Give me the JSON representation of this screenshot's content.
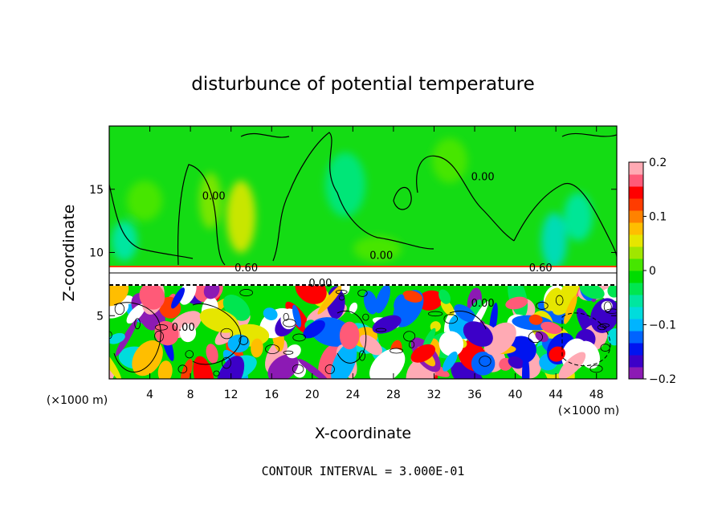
{
  "chart_data": {
    "type": "heatmap",
    "title": "disturbunce of potential temperature",
    "xlabel": "X-coordinate",
    "ylabel": "Z-coordinate",
    "x_unit_left": "(×1000 m)",
    "x_unit_right": "(×1000 m)",
    "xlim": [
      0,
      50
    ],
    "ylim": [
      0,
      20
    ],
    "x_ticks": [
      4,
      8,
      12,
      16,
      20,
      24,
      28,
      32,
      36,
      40,
      44,
      48
    ],
    "y_ticks": [
      5,
      10,
      15
    ],
    "colorbar": {
      "range": [
        -0.2,
        0.2
      ],
      "ticks": [
        {
          "value": 0.2,
          "label": "0.2"
        },
        {
          "value": 0.1,
          "label": "0.1"
        },
        {
          "value": 0,
          "label": "0"
        },
        {
          "value": -0.1,
          "label": "−0.1"
        },
        {
          "value": -0.2,
          "label": "−0.2"
        }
      ],
      "colors": [
        "#8c1ab4",
        "#3c00c8",
        "#0014f0",
        "#0064ff",
        "#00b4ff",
        "#00dcdc",
        "#00e6a0",
        "#00e650",
        "#00dc00",
        "#46e600",
        "#a0e600",
        "#e6e600",
        "#ffbe00",
        "#ff8200",
        "#ff3c00",
        "#ff0000",
        "#ff5a78",
        "#ffaab4"
      ]
    },
    "contour_labels": [
      {
        "text": "0.60",
        "x": 13.5,
        "z": 8.5
      },
      {
        "text": "0.00",
        "x": 20.8,
        "z": 7.3
      },
      {
        "text": "0.60",
        "x": 42.5,
        "z": 8.5
      },
      {
        "text": "0.00",
        "x": 36.8,
        "z": 5.7
      },
      {
        "text": "0.00",
        "x": 7.3,
        "z": 3.8
      },
      {
        "text": "0.00",
        "x": 26.8,
        "z": 9.5
      },
      {
        "text": "0.00",
        "x": 36.8,
        "z": 15.7
      },
      {
        "text": "0.00",
        "x": 10.3,
        "z": 14.2
      }
    ],
    "annotation": "CONTOUR INTERVAL = 3.000E-01"
  }
}
